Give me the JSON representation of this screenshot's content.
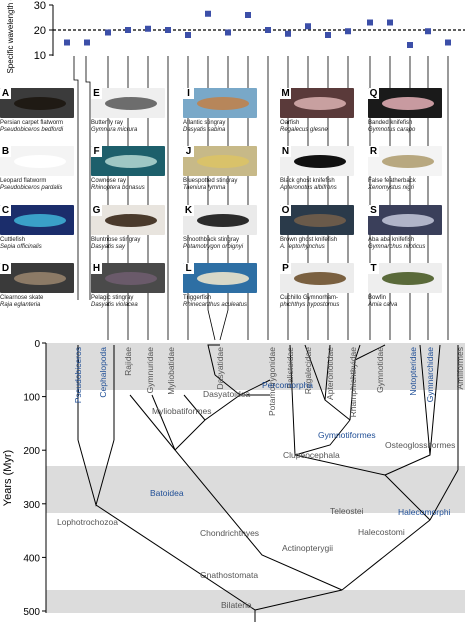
{
  "chart_data": {
    "type": "scatter",
    "ylabel": "Specific wavelength (λ/ℓ)",
    "yticks": [
      "30",
      "20",
      "10"
    ],
    "ylim": [
      10,
      30
    ],
    "reference_line": 20,
    "values": [
      15,
      15,
      19,
      20,
      20.5,
      20,
      18,
      26.5,
      19,
      26,
      20,
      18.5,
      21.5,
      18,
      19.5,
      23,
      23,
      14,
      19.5,
      15
    ],
    "marker_color": "#3c4fa8"
  },
  "panels": [
    {
      "letter": "A",
      "common": "Persian carpet flatworm",
      "scientific": "Pseudobiceros bedfordi",
      "bg": "#3b3b3b",
      "body": "#1f1a14"
    },
    {
      "letter": "B",
      "common": "Leopard flatworm",
      "scientific": "Pseudobiceros pardalis",
      "bg": "#f4f4f4",
      "body": "#ffffff"
    },
    {
      "letter": "C",
      "common": "Cuttlefish",
      "scientific": "Sepia officinalis",
      "bg": "#1b2d6b",
      "body": "#3aa0c8"
    },
    {
      "letter": "D",
      "common": "Clearnose skate",
      "scientific": "Raja eglanteria",
      "bg": "#3a3a3a",
      "body": "#8c7a66"
    },
    {
      "letter": "E",
      "common": "Butterfly ray",
      "scientific": "Gymnura micrura",
      "bg": "#efefef",
      "body": "#6d6d6d"
    },
    {
      "letter": "F",
      "common": "Cownose ray",
      "scientific": "Rhinoptera bonasus",
      "bg": "#1d5f6b",
      "body": "#9fc7c4"
    },
    {
      "letter": "G",
      "common": "Bluntnose stingray",
      "scientific": "Dasyatis say",
      "bg": "#e8e4de",
      "body": "#4a3a2c"
    },
    {
      "letter": "H",
      "common": "Pelagic stingray",
      "scientific": "Dasyatis violacea",
      "bg": "#4a4a4a",
      "body": "#6a5a6a"
    },
    {
      "letter": "I",
      "common": "Atlantic stingray",
      "scientific": "Dasyatis sabina",
      "bg": "#79a8c8",
      "body": "#b7865a"
    },
    {
      "letter": "J",
      "common": "Bluespotted stingray",
      "scientific": "Taeniura lymma",
      "bg": "#c7b988",
      "body": "#d9c26a"
    },
    {
      "letter": "K",
      "common": "Smoothback stingray",
      "scientific": "Potamotrygon orbignyi",
      "bg": "#eaeaea",
      "body": "#2b2b2b"
    },
    {
      "letter": "L",
      "common": "Triggerfish",
      "scientific": "Rhinecanthus aculeatus",
      "bg": "#2e6fa4",
      "body": "#d8d8c8"
    },
    {
      "letter": "M",
      "common": "Oarfish",
      "scientific": "Regalecus glesne",
      "bg": "#5a3a3a",
      "body": "#c8a0a0"
    },
    {
      "letter": "N",
      "common": "Black ghost knifefish",
      "scientific": "Apteronotus albifrons",
      "bg": "#f0f0f0",
      "body": "#111111"
    },
    {
      "letter": "O",
      "common": "Brown ghost knifefish",
      "scientific": "A. leptorhynchus",
      "bg": "#2a3a4a",
      "body": "#6a5a4a"
    },
    {
      "letter": "P",
      "common": "Cuchillo Gymnorham-",
      "scientific": "phichthys hypostomus",
      "bg": "#ececec",
      "body": "#7a6040"
    },
    {
      "letter": "Q",
      "common": "Banded knifefish",
      "scientific": "Gymnotus carapo",
      "bg": "#1a1a1a",
      "body": "#c89aa0"
    },
    {
      "letter": "R",
      "common": "False featherback",
      "scientific": "Xenomystus nigri",
      "bg": "#f4f4f4",
      "body": "#b8a880"
    },
    {
      "letter": "S",
      "common": "Aba aba knifefish",
      "scientific": "Gymnarchus niloticus",
      "bg": "#3a3f5a",
      "body": "#b0b4c8"
    },
    {
      "letter": "T",
      "common": "Bowfin",
      "scientific": "Amia calva",
      "bg": "#eeeeee",
      "body": "#5a6a3a"
    }
  ],
  "tree": {
    "leaves": [
      {
        "label": "Pseudobiceros",
        "color": "#1f4e96"
      },
      {
        "label": "Cephalopoda",
        "color": "#1f4e96"
      },
      {
        "label": "Rajidae",
        "color": "#555555"
      },
      {
        "label": "Gymnuridae",
        "color": "#555555"
      },
      {
        "label": "Myliobatidae",
        "color": "#555555"
      },
      {
        "label": "Dasyatidae",
        "color": "#555555"
      },
      {
        "label": "Potamotrygonidae",
        "color": "#555555"
      },
      {
        "label": "Balistoidae",
        "color": "#555555"
      },
      {
        "label": "Regalecidae",
        "color": "#555555"
      },
      {
        "label": "Apteronotidae",
        "color": "#555555"
      },
      {
        "label": "Rhamphichthyidae",
        "color": "#555555"
      },
      {
        "label": "Gymnotidae",
        "color": "#555555"
      },
      {
        "label": "Notopteridae",
        "color": "#1f4e96"
      },
      {
        "label": "Gymnarchidae",
        "color": "#1f4e96"
      },
      {
        "label": "Amiiformes",
        "color": "#555555"
      }
    ],
    "clades": [
      {
        "label": "Dasyatoidea",
        "color": "#555555"
      },
      {
        "label": "Percomorpha",
        "color": "#1f4e96"
      },
      {
        "label": "Myliobatiformes",
        "color": "#555555"
      },
      {
        "label": "Gymnotiformes",
        "color": "#1f4e96"
      },
      {
        "label": "Clupeocephala",
        "color": "#555555"
      },
      {
        "label": "Osteoglossiformes",
        "color": "#555555"
      },
      {
        "label": "Batoidea",
        "color": "#1f4e96"
      },
      {
        "label": "Lophotrochozoa",
        "color": "#555555"
      },
      {
        "label": "Teleostei",
        "color": "#555555"
      },
      {
        "label": "Halecomorphi",
        "color": "#1f4e96"
      },
      {
        "label": "Chondrichthyes",
        "color": "#555555"
      },
      {
        "label": "Halecostomi",
        "color": "#555555"
      },
      {
        "label": "Actinopterygii",
        "color": "#555555"
      },
      {
        "label": "Gnathostomata",
        "color": "#555555"
      },
      {
        "label": "Bilateria",
        "color": "#555555"
      }
    ],
    "time_axis": {
      "label": "Years (Myr)",
      "ticks": [
        "0",
        "100",
        "200",
        "300",
        "400",
        "500"
      ]
    }
  }
}
